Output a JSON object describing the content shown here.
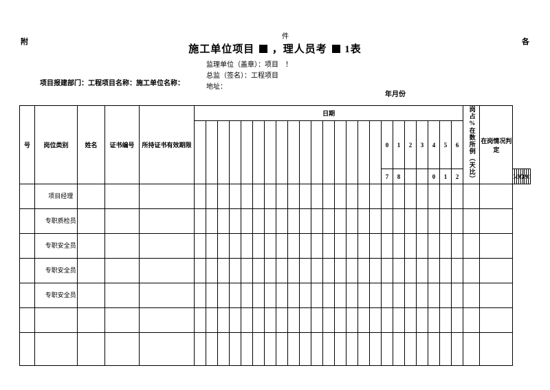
{
  "corners": {
    "left": "附",
    "right": "各",
    "small_top": "件"
  },
  "title": {
    "seg1": "施工单位项目",
    "seg2": "，理人员考",
    "seg3": "1表"
  },
  "meta": {
    "line1": "监理单位（盖章）：项目　！",
    "line2": "总监（签名）：工程项目",
    "line3": "地址：",
    "left_line": "项目报建部门：工程项目名称：施工单位名称：",
    "ym": "年月份"
  },
  "headers": {
    "seq": "号",
    "role": "岗位类别",
    "name": "姓名",
    "cert_no": "证书编号",
    "valid": "所持证书有效期限",
    "date": "日期",
    "pct": "岗占%在数所例（天比）",
    "judge": "在岗情况判定"
  },
  "date_row1": [
    "0",
    "1",
    "2",
    "3",
    "4",
    "5",
    "6"
  ],
  "date_row2": [
    "7",
    "8",
    "",
    "",
    "0",
    "1",
    "2",
    "3",
    "4",
    "5",
    "6",
    "7",
    "8",
    "9",
    "0",
    "1"
  ],
  "roles": {
    "r1": "项目经理",
    "r2": "专职质检员",
    "r3": "专职安全员",
    "r4": "专职安全员",
    "r5": "专职安全员"
  },
  "style": {
    "page_bg": "#ffffff",
    "text_color": "#000000",
    "border_color": "#000000",
    "title_fontsize": 15,
    "body_fontsize": 10,
    "table_fontsize": 9
  }
}
